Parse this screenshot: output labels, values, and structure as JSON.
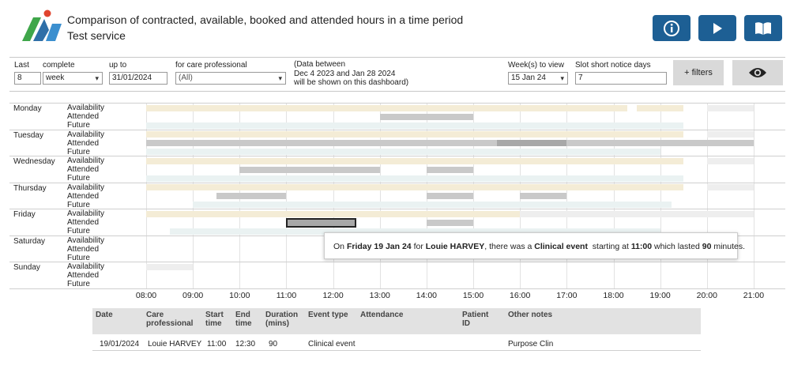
{
  "header": {
    "title": "Comparison of contracted, available, booked and attended hours in a time period",
    "subtitle": "Test service",
    "buttons": [
      {
        "name": "info-button",
        "icon": "info-icon"
      },
      {
        "name": "play-button",
        "icon": "play-icon"
      },
      {
        "name": "guide-button",
        "icon": "book-icon"
      }
    ],
    "button_color": "#1d5f94"
  },
  "filters": {
    "last_label": "Last",
    "last_value": "8",
    "complete_label": "complete",
    "period_value": "week",
    "upto_label": "up to",
    "upto_value": "31/01/2024",
    "professional_label": "for care professional",
    "professional_value": "(All)",
    "note_lines": [
      "(Data between",
      "Dec 4 2023 and Jan 28 2024",
      "will be shown on this dashboard)"
    ],
    "weeks_label": "Week(s) to view",
    "weeks_value": "15 Jan 24",
    "slot_label": "Slot short notice days",
    "slot_value": "7",
    "more_filters_label": "+ filters",
    "eye_icon": "eye-icon"
  },
  "schedule": {
    "rows": [
      "Availability",
      "Attended",
      "Future"
    ],
    "days": [
      "Monday",
      "Tuesday",
      "Wednesday",
      "Thursday",
      "Friday",
      "Saturday",
      "Sunday"
    ],
    "colors": {
      "availability": "#f4ecd6",
      "availability_faint": "#eeeeee",
      "attended": "#c9c9c9",
      "future": "#eaf2f2",
      "selected": "#a8a8a8"
    },
    "bars": [
      {
        "day": 0,
        "row": 0,
        "start": 8.0,
        "end": 18.3,
        "kind": "availability"
      },
      {
        "day": 0,
        "row": 0,
        "start": 18.5,
        "end": 19.5,
        "kind": "availability"
      },
      {
        "day": 0,
        "row": 0,
        "start": 20.0,
        "end": 21.0,
        "kind": "availability_faint"
      },
      {
        "day": 0,
        "row": 1,
        "start": 13.0,
        "end": 15.0,
        "kind": "attended"
      },
      {
        "day": 0,
        "row": 2,
        "start": 8.0,
        "end": 19.5,
        "kind": "future"
      },
      {
        "day": 1,
        "row": 0,
        "start": 8.0,
        "end": 19.5,
        "kind": "availability"
      },
      {
        "day": 1,
        "row": 0,
        "start": 20.0,
        "end": 21.0,
        "kind": "availability_faint"
      },
      {
        "day": 1,
        "row": 1,
        "start": 8.0,
        "end": 21.0,
        "kind": "attended"
      },
      {
        "day": 1,
        "row": 1,
        "start": 15.5,
        "end": 17.0,
        "kind": "selected"
      },
      {
        "day": 1,
        "row": 2,
        "start": 8.0,
        "end": 19.0,
        "kind": "future"
      },
      {
        "day": 2,
        "row": 0,
        "start": 8.0,
        "end": 19.5,
        "kind": "availability"
      },
      {
        "day": 2,
        "row": 0,
        "start": 20.0,
        "end": 21.0,
        "kind": "availability_faint"
      },
      {
        "day": 2,
        "row": 1,
        "start": 10.0,
        "end": 13.0,
        "kind": "attended"
      },
      {
        "day": 2,
        "row": 1,
        "start": 14.0,
        "end": 15.0,
        "kind": "attended"
      },
      {
        "day": 2,
        "row": 2,
        "start": 8.0,
        "end": 19.5,
        "kind": "future"
      },
      {
        "day": 3,
        "row": 0,
        "start": 8.0,
        "end": 19.5,
        "kind": "availability"
      },
      {
        "day": 3,
        "row": 0,
        "start": 20.0,
        "end": 21.0,
        "kind": "availability_faint"
      },
      {
        "day": 3,
        "row": 1,
        "start": 9.5,
        "end": 11.0,
        "kind": "attended"
      },
      {
        "day": 3,
        "row": 1,
        "start": 14.0,
        "end": 15.0,
        "kind": "attended"
      },
      {
        "day": 3,
        "row": 1,
        "start": 16.0,
        "end": 17.0,
        "kind": "attended"
      },
      {
        "day": 3,
        "row": 2,
        "start": 9.0,
        "end": 19.25,
        "kind": "future"
      },
      {
        "day": 4,
        "row": 0,
        "start": 8.0,
        "end": 16.0,
        "kind": "availability"
      },
      {
        "day": 4,
        "row": 0,
        "start": 16.0,
        "end": 21.0,
        "kind": "availability_faint"
      },
      {
        "day": 4,
        "row": 1,
        "start": 11.0,
        "end": 12.5,
        "kind": "selected"
      },
      {
        "day": 4,
        "row": 1,
        "start": 14.0,
        "end": 15.0,
        "kind": "attended"
      },
      {
        "day": 4,
        "row": 2,
        "start": 8.5,
        "end": 19.0,
        "kind": "future"
      },
      {
        "day": 6,
        "row": 0,
        "start": 8.0,
        "end": 9.0,
        "kind": "availability_faint"
      }
    ]
  },
  "axis": {
    "ticks": [
      "08:00",
      "09:00",
      "10:00",
      "11:00",
      "12:00",
      "13:00",
      "14:00",
      "15:00",
      "16:00",
      "17:00",
      "18:00",
      "19:00",
      "20:00",
      "21:00"
    ]
  },
  "tooltip": {
    "parts": [
      {
        "text": "On ",
        "bold": false
      },
      {
        "text": "Friday 19 Jan 24",
        "bold": true
      },
      {
        "text": " for ",
        "bold": false
      },
      {
        "text": "Louie HARVEY",
        "bold": true
      },
      {
        "text": ", there was a ",
        "bold": false
      },
      {
        "text": "Clinical event",
        "bold": true
      },
      {
        "text": "  starting at ",
        "bold": false
      },
      {
        "text": "11:00",
        "bold": true
      },
      {
        "text": " which lasted ",
        "bold": false
      },
      {
        "text": "90",
        "bold": true
      },
      {
        "text": " minutes.",
        "bold": false
      }
    ]
  },
  "table": {
    "headers": [
      "Date",
      "Care professional",
      "Start time",
      "End time",
      "Duration (mins)",
      "Event type",
      "Attendance",
      "Patient ID",
      "Other notes"
    ],
    "rows": [
      [
        "19/01/2024",
        "Louie HARVEY",
        "11:00",
        "12:30",
        "90",
        "Clinical event",
        "",
        "",
        "Purpose Clin"
      ]
    ]
  }
}
